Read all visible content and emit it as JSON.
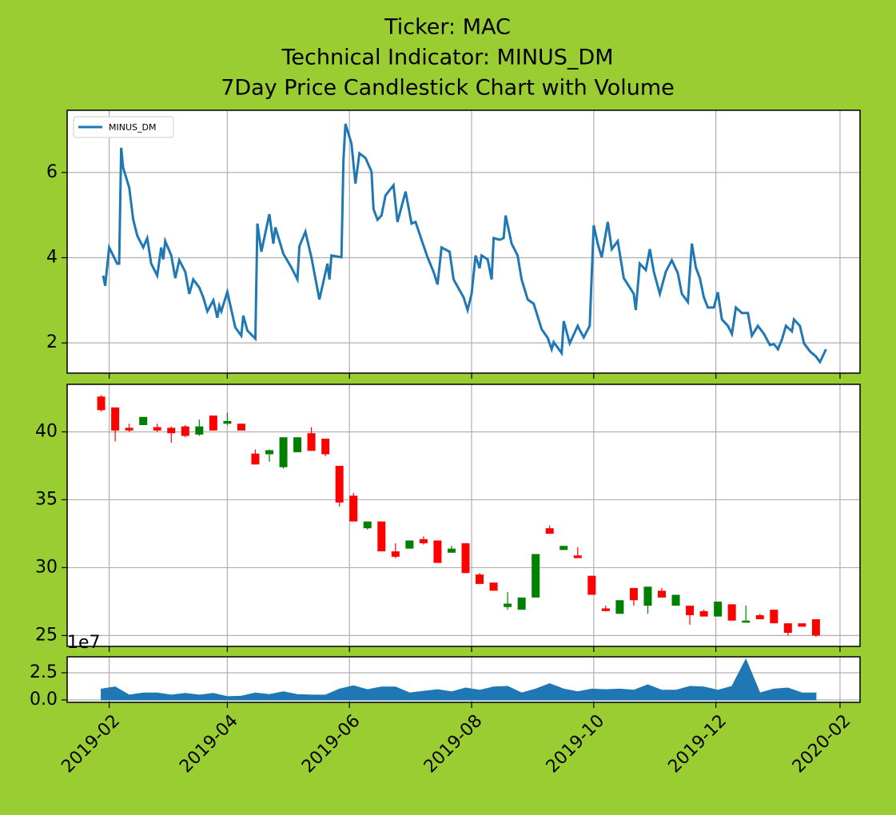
{
  "chart_data": [
    {
      "type": "line",
      "title": [
        "Ticker: MAC",
        "Technical Indicator: MINUS_DM",
        "7Day Price Candlestick Chart with Volume"
      ],
      "legend": "upper left",
      "grid": true,
      "xlim": [
        "2019-01-11",
        "2020-02-11"
      ],
      "ylim": [
        1.29,
        7.46
      ],
      "yticks": [
        2,
        4,
        6
      ],
      "x": [
        "2019-01-29",
        "2019-01-30",
        "2019-02-01",
        "2019-02-05",
        "2019-02-06",
        "2019-02-07",
        "2019-02-08",
        "2019-02-11",
        "2019-02-13",
        "2019-02-15",
        "2019-02-18",
        "2019-02-20",
        "2019-02-22",
        "2019-02-25",
        "2019-02-27",
        "2019-02-28",
        "2019-03-01",
        "2019-03-04",
        "2019-03-06",
        "2019-03-08",
        "2019-03-11",
        "2019-03-13",
        "2019-03-15",
        "2019-03-18",
        "2019-03-20",
        "2019-03-22",
        "2019-03-25",
        "2019-03-27",
        "2019-03-28",
        "2019-03-29",
        "2019-04-01",
        "2019-04-05",
        "2019-04-08",
        "2019-04-09",
        "2019-04-11",
        "2019-04-15",
        "2019-04-16",
        "2019-04-18",
        "2019-04-22",
        "2019-04-24",
        "2019-04-25",
        "2019-04-29",
        "2019-05-03",
        "2019-05-06",
        "2019-05-07",
        "2019-05-10",
        "2019-05-13",
        "2019-05-17",
        "2019-05-21",
        "2019-05-22",
        "2019-05-23",
        "2019-05-28",
        "2019-05-29",
        "2019-05-30",
        "2019-06-02",
        "2019-06-04",
        "2019-06-06",
        "2019-06-09",
        "2019-06-12",
        "2019-06-13",
        "2019-06-15",
        "2019-06-17",
        "2019-06-19",
        "2019-06-23",
        "2019-06-25",
        "2019-06-29",
        "2019-07-02",
        "2019-07-04",
        "2019-07-07",
        "2019-07-10",
        "2019-07-13",
        "2019-07-15",
        "2019-07-17",
        "2019-07-21",
        "2019-07-23",
        "2019-07-28",
        "2019-07-30",
        "2019-08-01",
        "2019-08-03",
        "2019-08-05",
        "2019-08-06",
        "2019-08-09",
        "2019-08-11",
        "2019-08-12",
        "2019-08-15",
        "2019-08-17",
        "2019-08-18",
        "2019-08-21",
        "2019-08-24",
        "2019-08-26",
        "2019-08-29",
        "2019-09-01",
        "2019-09-05",
        "2019-09-08",
        "2019-09-10",
        "2019-09-11",
        "2019-09-15",
        "2019-09-16",
        "2019-09-19",
        "2019-09-23",
        "2019-09-24",
        "2019-09-26",
        "2019-09-29",
        "2019-10-01",
        "2019-10-03",
        "2019-10-05",
        "2019-10-08",
        "2019-10-10",
        "2019-10-13",
        "2019-10-16",
        "2019-10-19",
        "2019-10-21",
        "2019-10-22",
        "2019-10-24",
        "2019-10-27",
        "2019-10-29",
        "2019-10-31",
        "2019-11-03",
        "2019-11-06",
        "2019-11-09",
        "2019-11-12",
        "2019-11-14",
        "2019-11-17",
        "2019-11-19",
        "2019-11-21",
        "2019-11-23",
        "2019-11-25",
        "2019-11-27",
        "2019-11-30",
        "2019-12-02",
        "2019-12-04",
        "2019-12-07",
        "2019-12-09",
        "2019-12-11",
        "2019-12-14",
        "2019-12-17",
        "2019-12-19",
        "2019-12-22",
        "2019-12-25",
        "2019-12-28",
        "2019-12-30",
        "2020-01-01",
        "2020-01-03",
        "2020-01-05",
        "2020-01-08",
        "2020-01-09",
        "2020-01-12",
        "2020-01-14",
        "2020-01-17",
        "2020-01-20",
        "2020-01-22",
        "2020-01-25"
      ],
      "series": [
        {
          "name": "MINUS_DM",
          "color": "#1f77b4",
          "values": [
            3.58,
            3.34,
            4.24,
            3.86,
            3.86,
            6.58,
            6.11,
            5.64,
            4.89,
            4.52,
            4.24,
            4.46,
            3.86,
            3.58,
            4.24,
            3.96,
            4.39,
            4.05,
            3.52,
            3.94,
            3.67,
            3.15,
            3.49,
            3.3,
            3.07,
            2.74,
            3.0,
            2.59,
            2.87,
            2.74,
            3.2,
            2.36,
            2.17,
            2.64,
            2.29,
            2.1,
            4.8,
            4.14,
            5.02,
            4.33,
            4.71,
            4.09,
            3.77,
            3.49,
            4.27,
            4.61,
            4.01,
            3.02,
            3.86,
            3.49,
            4.05,
            4.01,
            6.3,
            7.14,
            6.68,
            5.74,
            6.45,
            6.34,
            6.02,
            5.14,
            4.89,
            4.99,
            5.46,
            5.7,
            4.84,
            5.55,
            4.8,
            4.84,
            4.42,
            4.01,
            3.67,
            3.37,
            4.24,
            4.14,
            3.49,
            3.07,
            2.77,
            3.15,
            4.05,
            3.75,
            4.05,
            3.96,
            3.49,
            4.46,
            4.42,
            4.46,
            4.99,
            4.33,
            4.05,
            3.49,
            3.02,
            2.92,
            2.32,
            2.12,
            1.85,
            2.02,
            1.76,
            2.51,
            1.99,
            2.4,
            2.3,
            2.13,
            2.4,
            4.76,
            4.33,
            4.01,
            4.84,
            4.2,
            4.39,
            3.52,
            3.3,
            3.15,
            2.77,
            3.86,
            3.71,
            4.2,
            3.67,
            3.15,
            3.67,
            3.94,
            3.64,
            3.15,
            2.96,
            4.33,
            3.77,
            3.52,
            3.07,
            2.83,
            2.83,
            3.19,
            2.55,
            2.4,
            2.21,
            2.83,
            2.7,
            2.7,
            2.17,
            2.4,
            2.21,
            1.95,
            1.97,
            1.85,
            2.08,
            2.4,
            2.27,
            2.55,
            2.4,
            1.99,
            1.8,
            1.68,
            1.55,
            1.85
          ]
        }
      ]
    },
    {
      "type": "candlestick",
      "grid": true,
      "up_color": "#008000",
      "down_color": "#ff0000",
      "xlim": [
        "2019-01-11",
        "2020-02-11"
      ],
      "ylim": [
        24.2,
        43.5
      ],
      "yticks": [
        25,
        30,
        35,
        40
      ],
      "x": [
        "2019-01-28",
        "2019-02-04",
        "2019-02-11",
        "2019-02-18",
        "2019-02-25",
        "2019-03-04",
        "2019-03-11",
        "2019-03-18",
        "2019-03-25",
        "2019-04-01",
        "2019-04-08",
        "2019-04-15",
        "2019-04-22",
        "2019-04-29",
        "2019-05-06",
        "2019-05-13",
        "2019-05-20",
        "2019-05-27",
        "2019-06-03",
        "2019-06-10",
        "2019-06-17",
        "2019-06-24",
        "2019-07-01",
        "2019-07-08",
        "2019-07-15",
        "2019-07-22",
        "2019-07-29",
        "2019-08-05",
        "2019-08-12",
        "2019-08-19",
        "2019-08-26",
        "2019-09-02",
        "2019-09-09",
        "2019-09-16",
        "2019-09-23",
        "2019-09-30",
        "2019-10-07",
        "2019-10-14",
        "2019-10-21",
        "2019-10-28",
        "2019-11-04",
        "2019-11-11",
        "2019-11-18",
        "2019-11-25",
        "2019-12-02",
        "2019-12-09",
        "2019-12-16",
        "2019-12-23",
        "2019-12-30",
        "2020-01-06",
        "2020-01-13",
        "2020-01-20"
      ],
      "open": [
        42.6,
        41.8,
        40.3,
        40.5,
        40.35,
        40.3,
        40.4,
        39.8,
        41.2,
        40.6,
        40.6,
        38.4,
        38.35,
        37.4,
        38.5,
        39.9,
        39.5,
        37.5,
        35.3,
        32.9,
        33.4,
        31.2,
        31.4,
        32.1,
        32.0,
        31.1,
        31.8,
        29.5,
        28.9,
        27.1,
        26.9,
        27.8,
        32.9,
        31.3,
        30.9,
        29.4,
        27.0,
        26.6,
        28.5,
        27.2,
        28.3,
        27.2,
        27.2,
        26.8,
        26.4,
        27.3,
        25.95,
        26.5,
        26.9,
        25.9,
        25.9,
        26.2
      ],
      "high": [
        42.7,
        41.8,
        40.6,
        41.1,
        40.6,
        40.4,
        40.5,
        40.9,
        41.2,
        41.4,
        40.6,
        38.7,
        38.7,
        39.6,
        39.6,
        40.35,
        39.5,
        37.5,
        35.5,
        33.4,
        33.4,
        31.8,
        32.0,
        32.3,
        32.0,
        31.6,
        31.8,
        29.6,
        28.9,
        28.2,
        27.8,
        31.0,
        33.1,
        31.6,
        31.5,
        29.4,
        27.2,
        27.6,
        28.5,
        28.6,
        28.5,
        28.0,
        27.2,
        26.9,
        27.5,
        27.3,
        27.2,
        26.6,
        26.9,
        25.9,
        25.9,
        26.2
      ],
      "low": [
        41.5,
        39.3,
        40.0,
        40.5,
        40.0,
        39.2,
        39.6,
        39.7,
        40.1,
        40.5,
        40.1,
        37.6,
        37.8,
        37.3,
        38.5,
        38.6,
        38.2,
        34.5,
        33.4,
        32.8,
        31.2,
        30.7,
        31.4,
        31.7,
        30.35,
        31.1,
        29.6,
        28.8,
        28.3,
        26.9,
        26.9,
        27.8,
        32.5,
        31.3,
        30.7,
        28.0,
        26.8,
        26.6,
        27.2,
        26.6,
        27.8,
        27.2,
        25.8,
        26.4,
        26.4,
        26.1,
        25.95,
        26.2,
        25.9,
        25.0,
        25.65,
        24.9
      ],
      "close": [
        41.6,
        40.1,
        40.1,
        41.1,
        40.1,
        39.9,
        39.7,
        40.4,
        40.1,
        40.8,
        40.1,
        37.6,
        38.65,
        39.6,
        39.6,
        38.6,
        38.35,
        34.8,
        33.4,
        33.4,
        31.2,
        30.8,
        32.0,
        31.8,
        30.35,
        31.4,
        29.6,
        28.8,
        28.3,
        27.35,
        27.8,
        31.0,
        32.5,
        31.6,
        30.7,
        28.0,
        26.8,
        27.6,
        27.6,
        28.6,
        27.8,
        28.0,
        26.5,
        26.4,
        27.5,
        26.1,
        26.1,
        26.2,
        25.9,
        25.2,
        25.65,
        25.0
      ]
    },
    {
      "type": "area",
      "grid": true,
      "color": "#1f77b4",
      "offset_text": "1e7",
      "xlim": [
        "2019-01-11",
        "2020-02-11"
      ],
      "ylim": [
        -0.22,
        3.97
      ],
      "yticks": [
        {
          "value": 0,
          "label": "0.0"
        },
        2.5
      ],
      "xticks": [
        {
          "value": "2019-02-01",
          "label": "2019-02"
        },
        {
          "value": "2019-04-01",
          "label": "2019-04"
        },
        {
          "value": "2019-06-01",
          "label": "2019-06"
        },
        {
          "value": "2019-08-01",
          "label": "2019-08"
        },
        {
          "value": "2019-10-01",
          "label": "2019-10"
        },
        {
          "value": "2019-12-01",
          "label": "2019-12"
        },
        {
          "value": "2020-02-01",
          "label": "2020-02"
        }
      ],
      "x": [
        "2019-01-28",
        "2019-02-04",
        "2019-02-11",
        "2019-02-18",
        "2019-02-25",
        "2019-03-04",
        "2019-03-11",
        "2019-03-18",
        "2019-03-25",
        "2019-04-01",
        "2019-04-08",
        "2019-04-15",
        "2019-04-22",
        "2019-04-29",
        "2019-05-06",
        "2019-05-13",
        "2019-05-20",
        "2019-05-27",
        "2019-06-03",
        "2019-06-10",
        "2019-06-17",
        "2019-06-24",
        "2019-07-01",
        "2019-07-08",
        "2019-07-15",
        "2019-07-22",
        "2019-07-29",
        "2019-08-05",
        "2019-08-12",
        "2019-08-19",
        "2019-08-26",
        "2019-09-02",
        "2019-09-09",
        "2019-09-16",
        "2019-09-23",
        "2019-09-30",
        "2019-10-07",
        "2019-10-14",
        "2019-10-21",
        "2019-10-28",
        "2019-11-04",
        "2019-11-11",
        "2019-11-18",
        "2019-11-25",
        "2019-12-02",
        "2019-12-09",
        "2019-12-16",
        "2019-12-23",
        "2019-12-30",
        "2020-01-06",
        "2020-01-13",
        "2020-01-20"
      ],
      "values": [
        1.0,
        1.2,
        0.45,
        0.65,
        0.65,
        0.45,
        0.6,
        0.45,
        0.6,
        0.3,
        0.35,
        0.65,
        0.5,
        0.75,
        0.5,
        0.45,
        0.45,
        1.0,
        1.3,
        0.95,
        1.2,
        1.2,
        0.65,
        0.8,
        0.95,
        0.75,
        1.1,
        0.9,
        1.2,
        1.25,
        0.65,
        1.0,
        1.5,
        1.0,
        0.75,
        1.0,
        0.95,
        1.0,
        0.9,
        1.4,
        0.9,
        0.9,
        1.25,
        1.2,
        0.9,
        1.25,
        3.75,
        0.65,
        1.0,
        1.1,
        0.65,
        0.65
      ]
    }
  ]
}
